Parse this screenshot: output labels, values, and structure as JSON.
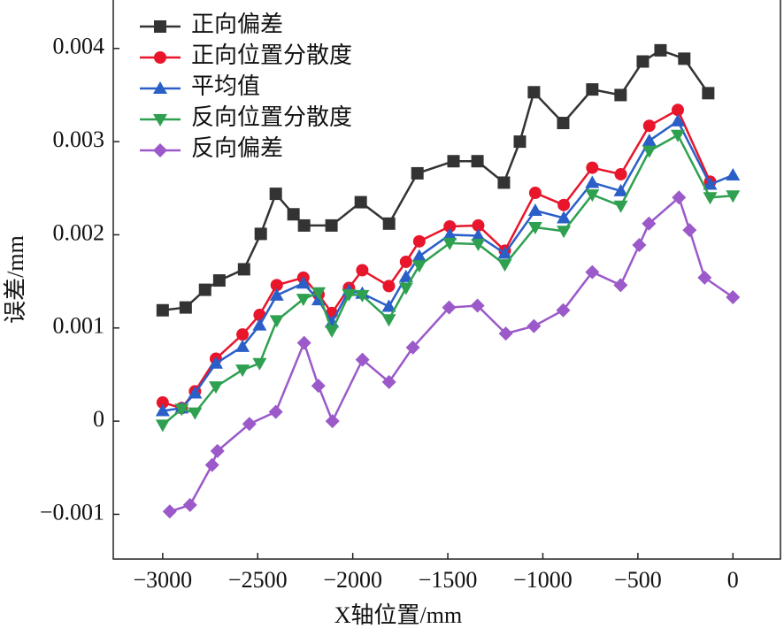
{
  "chart_data": {
    "type": "line",
    "xlabel": "X轴位置/mm",
    "ylabel": "误差/mm",
    "xlim": [
      -3260,
      250
    ],
    "ylim": [
      -0.00148,
      0.00452
    ],
    "xticks": [
      {
        "value": -3000,
        "label": "−3000"
      },
      {
        "value": -2500,
        "label": "−2500"
      },
      {
        "value": -2000,
        "label": "−2000"
      },
      {
        "value": -1500,
        "label": "−1500"
      },
      {
        "value": -1000,
        "label": "−1000"
      },
      {
        "value": -500,
        "label": "−500"
      },
      0
    ],
    "yticks": [
      {
        "value": -0.001,
        "label": "−0.001"
      },
      0,
      0.001,
      0.002,
      0.003,
      0.004
    ],
    "legend": "upper left",
    "series": [
      {
        "name": "正向偏差",
        "color": "#333333",
        "marker": "square",
        "x": [
          -3000,
          -2879,
          -2777,
          -2702,
          -2572,
          -2484,
          -2405,
          -2312,
          -2256,
          -2112,
          -1958,
          -1809,
          -1660,
          -1470,
          -1344,
          -1205,
          -1121,
          -1047,
          -893,
          -740,
          -591,
          -474,
          -381,
          -256,
          -130
        ],
        "values": [
          0.00119,
          0.00122,
          0.00141,
          0.00151,
          0.00163,
          0.00201,
          0.00244,
          0.00222,
          0.0021,
          0.0021,
          0.00235,
          0.00212,
          0.00266,
          0.00279,
          0.00279,
          0.00256,
          0.003,
          0.00353,
          0.0032,
          0.00356,
          0.0035,
          0.00386,
          0.00398,
          0.00389,
          0.00352
        ]
      },
      {
        "name": "正向位置分散度",
        "color": "#e8152b",
        "marker": "circle",
        "x": [
          -3000,
          -2900,
          -2830,
          -2720,
          -2580,
          -2490,
          -2400,
          -2260,
          -2180,
          -2110,
          -2020,
          -1950,
          -1810,
          -1720,
          -1650,
          -1490,
          -1340,
          -1200,
          -1040,
          -890,
          -740,
          -590,
          -440,
          -290,
          -120,
          0
        ],
        "values": [
          0.0002,
          0.00014,
          0.00032,
          0.00067,
          0.00093,
          0.00114,
          0.00146,
          0.00154,
          0.00136,
          0.00116,
          0.00143,
          0.00162,
          0.00145,
          0.00171,
          0.00193,
          0.00209,
          0.0021,
          0.00183,
          0.00245,
          0.00232,
          0.00272,
          0.00265,
          0.00317,
          0.00334,
          0.00257,
          null
        ]
      },
      {
        "name": "平均值",
        "color": "#2a5fc8",
        "marker": "triangle-up",
        "x": [
          -3000,
          -2900,
          -2830,
          -2720,
          -2580,
          -2490,
          -2400,
          -2260,
          -2180,
          -2110,
          -2020,
          -1950,
          -1810,
          -1720,
          -1650,
          -1490,
          -1340,
          -1200,
          -1040,
          -890,
          -740,
          -590,
          -440,
          -290,
          -120,
          0
        ],
        "values": [
          0.00011,
          0.00014,
          0.0003,
          0.00062,
          0.0008,
          0.00103,
          0.00135,
          0.00148,
          0.0013,
          0.00106,
          0.0014,
          0.00137,
          0.00123,
          0.00155,
          0.00177,
          0.002,
          0.00199,
          0.0018,
          0.00226,
          0.00218,
          0.00256,
          0.00247,
          0.00301,
          0.00322,
          0.00254,
          0.00264
        ]
      },
      {
        "name": "反向位置分散度",
        "color": "#2ea050",
        "marker": "triangle-down",
        "x": [
          -3000,
          -2900,
          -2830,
          -2720,
          -2580,
          -2490,
          -2400,
          -2260,
          -2180,
          -2110,
          -2020,
          -1950,
          -1810,
          -1720,
          -1650,
          -1490,
          -1340,
          -1200,
          -1040,
          -890,
          -740,
          -590,
          -440,
          -290,
          -120,
          0
        ],
        "values": [
          -4e-05,
          0.00013,
          9e-05,
          0.00037,
          0.00055,
          0.00062,
          0.00108,
          0.00131,
          0.00138,
          0.00097,
          0.00136,
          0.00135,
          0.00109,
          0.00143,
          0.00167,
          0.00191,
          0.0019,
          0.00168,
          0.00208,
          0.00204,
          0.00243,
          0.00231,
          0.0029,
          0.00307,
          0.0024,
          0.00242
        ]
      },
      {
        "name": "反向偏差",
        "color": "#9b59c9",
        "marker": "diamond",
        "x": [
          -2963,
          -2856,
          -2740,
          -2712,
          -2544,
          -2405,
          -2256,
          -2181,
          -2107,
          -1949,
          -1809,
          -1684,
          -1493,
          -1344,
          -1195,
          -1047,
          -893,
          -740,
          -591,
          -493,
          -442,
          -284,
          -228,
          -149,
          0
        ],
        "values": [
          -0.00097,
          -0.0009,
          -0.00047,
          -0.00032,
          -3e-05,
          0.0001,
          0.00084,
          0.00038,
          0,
          0.00066,
          0.00042,
          0.00079,
          0.00122,
          0.00124,
          0.00094,
          0.00102,
          0.00119,
          0.0016,
          0.00146,
          0.00189,
          0.00212,
          0.0024,
          0.00205,
          0.00154,
          0.00133
        ]
      }
    ]
  }
}
